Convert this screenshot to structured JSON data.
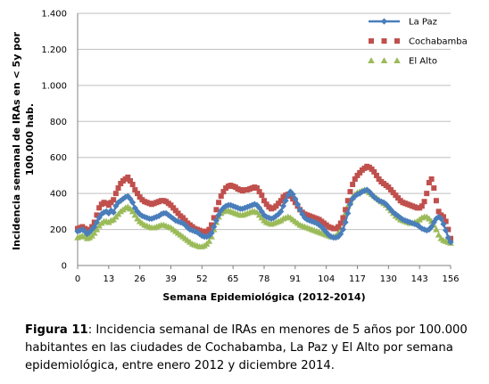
{
  "chart_data": {
    "type": "line",
    "title": "",
    "xlabel": "Semana Epidemiológica (2012-2014)",
    "ylabel_lines": [
      "Incidencia semanal de IRAs en < 5y por",
      "100.000 hab."
    ],
    "xlim": [
      0,
      156
    ],
    "ylim": [
      0,
      1400
    ],
    "xticks": [
      0,
      13,
      26,
      39,
      52,
      65,
      78,
      91,
      104,
      117,
      130,
      143,
      156
    ],
    "yticks": [
      0,
      200,
      400,
      600,
      800,
      1000,
      1200,
      1400
    ],
    "ytick_labels": [
      "0",
      "200",
      "400",
      "600",
      "800",
      "1.000",
      "1.200",
      "1.400"
    ],
    "grid": "horizontal",
    "legend_position": "top-right",
    "series": [
      {
        "name": "La Paz",
        "color": "#4a7ebb",
        "marker": "diamond",
        "values": [
          190,
          195,
          200,
          190,
          175,
          185,
          200,
          215,
          240,
          265,
          285,
          295,
          300,
          290,
          305,
          295,
          330,
          350,
          360,
          370,
          380,
          385,
          370,
          350,
          320,
          300,
          285,
          275,
          270,
          265,
          260,
          260,
          265,
          270,
          275,
          285,
          290,
          290,
          280,
          270,
          260,
          250,
          245,
          240,
          235,
          225,
          210,
          200,
          195,
          190,
          185,
          175,
          165,
          160,
          160,
          165,
          180,
          215,
          250,
          280,
          305,
          320,
          330,
          335,
          335,
          330,
          325,
          320,
          315,
          315,
          320,
          325,
          330,
          335,
          340,
          335,
          320,
          300,
          280,
          270,
          265,
          260,
          265,
          275,
          285,
          300,
          330,
          360,
          390,
          410,
          395,
          370,
          340,
          310,
          285,
          265,
          255,
          250,
          245,
          240,
          235,
          225,
          215,
          200,
          185,
          170,
          160,
          155,
          155,
          160,
          175,
          200,
          240,
          290,
          340,
          370,
          385,
          395,
          400,
          410,
          415,
          420,
          410,
          395,
          380,
          370,
          360,
          355,
          350,
          340,
          325,
          310,
          295,
          285,
          275,
          265,
          255,
          250,
          245,
          240,
          235,
          230,
          225,
          215,
          205,
          200,
          195,
          200,
          215,
          240,
          260,
          270,
          260,
          230,
          195,
          155,
          130
        ]
      },
      {
        "name": "Cochabamba",
        "color": "#c0504d",
        "marker": "square",
        "values": [
          205,
          210,
          215,
          205,
          195,
          200,
          215,
          240,
          280,
          320,
          340,
          350,
          345,
          335,
          350,
          365,
          400,
          430,
          455,
          470,
          480,
          490,
          470,
          450,
          420,
          400,
          380,
          365,
          355,
          350,
          345,
          340,
          345,
          350,
          355,
          360,
          360,
          355,
          345,
          335,
          320,
          305,
          290,
          275,
          265,
          250,
          235,
          225,
          215,
          205,
          200,
          195,
          190,
          185,
          190,
          200,
          225,
          265,
          310,
          350,
          385,
          410,
          430,
          440,
          445,
          440,
          435,
          425,
          420,
          415,
          420,
          420,
          425,
          430,
          435,
          430,
          410,
          390,
          360,
          340,
          325,
          315,
          320,
          330,
          345,
          360,
          380,
          390,
          395,
          385,
          370,
          350,
          330,
          310,
          295,
          285,
          280,
          275,
          270,
          265,
          260,
          255,
          245,
          235,
          225,
          215,
          210,
          205,
          205,
          215,
          235,
          265,
          310,
          360,
          410,
          450,
          480,
          500,
          515,
          530,
          540,
          550,
          545,
          535,
          520,
          500,
          480,
          465,
          455,
          445,
          435,
          420,
          405,
          390,
          375,
          360,
          350,
          345,
          340,
          335,
          330,
          325,
          320,
          320,
          330,
          355,
          400,
          460,
          480,
          430,
          360,
          300,
          280,
          270,
          245,
          200,
          150
        ]
      },
      {
        "name": "El Alto",
        "color": "#9bbb59",
        "marker": "triangle",
        "values": [
          155,
          160,
          165,
          160,
          150,
          155,
          165,
          180,
          200,
          220,
          235,
          245,
          245,
          240,
          250,
          255,
          270,
          285,
          300,
          310,
          320,
          325,
          315,
          300,
          280,
          260,
          245,
          235,
          225,
          220,
          215,
          210,
          210,
          215,
          220,
          225,
          225,
          220,
          215,
          210,
          200,
          190,
          180,
          170,
          160,
          150,
          140,
          130,
          120,
          115,
          110,
          105,
          105,
          110,
          120,
          135,
          160,
          200,
          240,
          270,
          290,
          300,
          305,
          305,
          300,
          295,
          290,
          285,
          280,
          280,
          285,
          290,
          295,
          300,
          300,
          295,
          280,
          265,
          250,
          240,
          235,
          230,
          235,
          240,
          245,
          250,
          260,
          265,
          270,
          265,
          255,
          245,
          235,
          225,
          220,
          215,
          210,
          205,
          200,
          195,
          190,
          185,
          180,
          175,
          170,
          165,
          160,
          160,
          165,
          180,
          205,
          245,
          290,
          330,
          360,
          380,
          395,
          405,
          410,
          415,
          420,
          415,
          405,
          395,
          385,
          375,
          365,
          355,
          345,
          335,
          320,
          305,
          290,
          275,
          265,
          255,
          250,
          245,
          240,
          235,
          235,
          240,
          245,
          255,
          265,
          270,
          270,
          260,
          245,
          225,
          200,
          170,
          150,
          140,
          135,
          130,
          125
        ]
      }
    ]
  },
  "caption": {
    "label": "Figura 11",
    "text": ":  Incidencia semanal de IRAs en menores de 5 años por 100.000 habitantes en las ciudades de Cochabamba, La Paz y El Alto por semana epidemiológica, entre enero 2012 y diciembre 2014."
  }
}
